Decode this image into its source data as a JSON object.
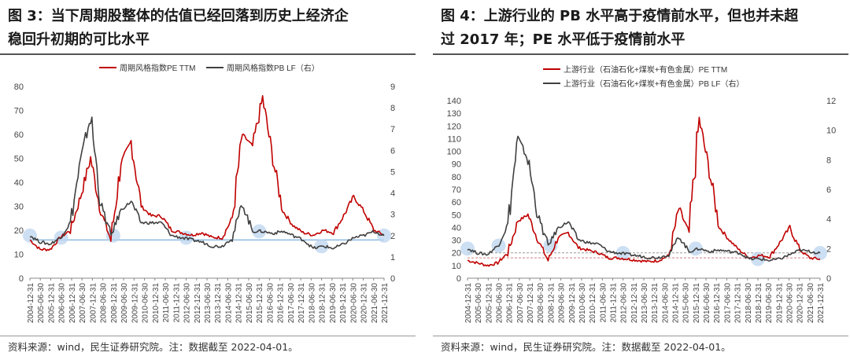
{
  "left": {
    "title_line1": "图 3：当下周期股整体的估值已经回落到历史上经济企",
    "title_line2": "稳回升初期的可比水平",
    "source": "资料来源：wind，民生证券研究院。注：数据截至 2022-04-01。"
  },
  "right": {
    "title_line1": "图 4：上游行业的 PB 水平高于疫情前水平，但也并未超",
    "title_line2": "过 2017 年；PE 水平低于疫情前水平",
    "source": "资料来源：wind，民生证券研究院。注：数据截至 2022-04-01。"
  },
  "colors": {
    "pe": "#c00000",
    "pb": "#404040",
    "highlight": "#bcd4ee",
    "refline_blue": "#5b9bd5",
    "refline_red": "#d08080",
    "refline_gray": "#999999"
  },
  "chart_data": [
    {
      "type": "line",
      "x_tick_labels": [
        "2004-12-31",
        "2005-06-30",
        "2005-12-31",
        "2006-06-30",
        "2006-12-31",
        "2007-06-30",
        "2007-12-31",
        "2008-06-30",
        "2008-12-31",
        "2009-06-30",
        "2009-12-31",
        "2010-06-30",
        "2010-12-31",
        "2011-06-30",
        "2011-12-31",
        "2012-06-30",
        "2012-12-31",
        "2013-06-30",
        "2013-12-31",
        "2014-06-30",
        "2014-12-31",
        "2015-06-30",
        "2015-12-31",
        "2016-06-30",
        "2016-12-31",
        "2017-06-30",
        "2017-12-31",
        "2018-06-30",
        "2018-12-31",
        "2019-06-30",
        "2019-12-31",
        "2020-06-30",
        "2020-12-31",
        "2021-06-30",
        "2021-12-31"
      ],
      "ylim": [
        0,
        80
      ],
      "yticks": [
        0,
        10,
        20,
        30,
        40,
        50,
        60,
        70,
        80
      ],
      "y2lim": [
        0,
        9
      ],
      "y2ticks": [
        0,
        1,
        2,
        3,
        4,
        5,
        6,
        7,
        8,
        9
      ],
      "series": [
        {
          "name": "周期风格指数PE TTM",
          "axis": "left",
          "values": [
            16,
            12,
            12,
            17,
            20,
            34,
            50,
            28,
            16,
            48,
            57,
            30,
            26,
            26,
            20,
            19,
            18,
            19,
            17,
            17,
            25,
            60,
            55,
            75,
            50,
            28,
            22,
            19,
            18,
            20,
            19,
            26,
            34,
            28,
            20,
            18
          ]
        },
        {
          "name": "周期风格指数PB LF（右）",
          "axis": "right",
          "values": [
            2.0,
            1.7,
            1.6,
            1.9,
            2.6,
            5.5,
            7.6,
            3.5,
            2.0,
            3.2,
            3.6,
            2.6,
            2.6,
            2.6,
            2.0,
            1.9,
            1.8,
            1.7,
            1.5,
            1.5,
            1.9,
            3.5,
            2.2,
            2.2,
            2.1,
            2.2,
            2.0,
            1.8,
            1.4,
            1.5,
            1.4,
            1.6,
            1.9,
            2.0,
            2.2,
            2.0
          ]
        }
      ],
      "reference_lines": [
        {
          "axis": "left",
          "value": 16
        }
      ],
      "highlight_points": [
        "2004-12-31",
        "2006-06-30",
        "2008-12-31",
        "2012-06-30",
        "2015-12-31",
        "2018-12-31",
        "2021-12-31"
      ],
      "legend_position": "top-center"
    },
    {
      "type": "line",
      "x_tick_labels": [
        "2004-12-31",
        "2005-06-30",
        "2005-12-31",
        "2006-06-30",
        "2006-12-31",
        "2007-06-30",
        "2007-12-31",
        "2008-06-30",
        "2008-12-31",
        "2009-06-30",
        "2009-12-31",
        "2010-06-30",
        "2010-12-31",
        "2011-06-30",
        "2011-12-31",
        "2012-06-30",
        "2012-12-31",
        "2013-06-30",
        "2013-12-31",
        "2014-06-30",
        "2014-12-31",
        "2015-06-30",
        "2015-12-31",
        "2016-06-30",
        "2016-12-31",
        "2017-06-30",
        "2017-12-31",
        "2018-06-30",
        "2018-12-31",
        "2019-06-30",
        "2019-12-31",
        "2020-06-30",
        "2020-12-31",
        "2021-06-30",
        "2021-12-31"
      ],
      "ylim": [
        0,
        140
      ],
      "yticks": [
        0,
        10,
        20,
        30,
        40,
        50,
        60,
        70,
        80,
        90,
        100,
        110,
        120,
        130,
        140
      ],
      "y2lim": [
        0,
        12
      ],
      "y2ticks": [
        0,
        2,
        4,
        6,
        8,
        10,
        12
      ],
      "series": [
        {
          "name": "上游行业（石油石化+煤炭+有色金属）PE TTM",
          "axis": "left",
          "values": [
            14,
            12,
            10,
            12,
            20,
            45,
            50,
            30,
            14,
            32,
            36,
            24,
            22,
            20,
            16,
            16,
            15,
            14,
            13,
            14,
            18,
            55,
            35,
            125,
            85,
            40,
            30,
            22,
            16,
            18,
            17,
            28,
            40,
            22,
            16,
            15
          ]
        },
        {
          "name": "上游行业（石油石化+煤炭+有色金属）PB LF（右）",
          "axis": "right",
          "values": [
            2.0,
            1.7,
            1.6,
            2.2,
            3.6,
            9.5,
            8.0,
            4.2,
            2.2,
            3.4,
            3.8,
            2.6,
            2.4,
            2.3,
            1.8,
            1.7,
            1.6,
            1.5,
            1.4,
            1.4,
            1.6,
            2.8,
            1.8,
            2.0,
            1.8,
            1.9,
            1.8,
            1.7,
            1.3,
            1.3,
            1.2,
            1.3,
            1.6,
            1.9,
            1.8,
            1.7
          ]
        }
      ],
      "reference_lines": [
        {
          "axis": "left",
          "value": 16
        },
        {
          "axis": "left",
          "value": 20
        }
      ],
      "highlight_points": [
        "2004-12-31",
        "2006-06-30",
        "2008-12-31",
        "2012-06-30",
        "2015-12-31",
        "2018-12-31",
        "2021-12-31"
      ],
      "legend_position": "top-left"
    }
  ]
}
